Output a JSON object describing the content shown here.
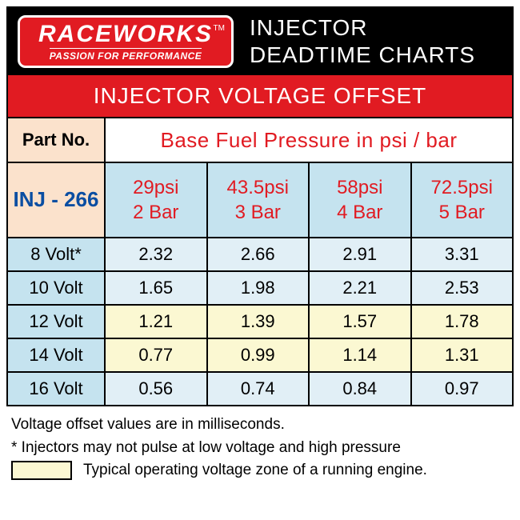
{
  "header": {
    "logo_main": "RACEWORKS",
    "logo_tm": "TM",
    "logo_tagline": "PASSION FOR PERFORMANCE",
    "title_line1": "INJECTOR",
    "title_line2": "DEADTIME CHARTS"
  },
  "subheader": "INJECTOR VOLTAGE OFFSET",
  "table": {
    "part_no_label": "Part No.",
    "part_no_value": "INJ - 266",
    "base_pressure_label": "Base Fuel Pressure in psi / bar",
    "columns": [
      {
        "psi": "29psi",
        "bar": "2 Bar"
      },
      {
        "psi": "43.5psi",
        "bar": "3 Bar"
      },
      {
        "psi": "58psi",
        "bar": "4 Bar"
      },
      {
        "psi": "72.5psi",
        "bar": "5 Bar"
      }
    ],
    "rows": [
      {
        "volt": "8 Volt*",
        "vals": [
          "2.32",
          "2.66",
          "2.91",
          "3.31"
        ],
        "highlight": false
      },
      {
        "volt": "10 Volt",
        "vals": [
          "1.65",
          "1.98",
          "2.21",
          "2.53"
        ],
        "highlight": false
      },
      {
        "volt": "12 Volt",
        "vals": [
          "1.21",
          "1.39",
          "1.57",
          "1.78"
        ],
        "highlight": true
      },
      {
        "volt": "14 Volt",
        "vals": [
          "0.77",
          "0.99",
          "1.14",
          "1.31"
        ],
        "highlight": true
      },
      {
        "volt": "16 Volt",
        "vals": [
          "0.56",
          "0.74",
          "0.84",
          "0.97"
        ],
        "highlight": false
      }
    ]
  },
  "footer": {
    "note1": "Voltage offset values are in milliseconds.",
    "note2": "* Injectors may not pulse at low voltage and high pressure",
    "legend": "Typical operating voltage zone of a running engine."
  },
  "colors": {
    "brand_red": "#e11b22",
    "header_bg": "#000000",
    "peach": "#fbe2cc",
    "blue_header": "#c5e3ef",
    "blue_light": "#e1eff6",
    "yellow": "#fbf8d2",
    "accent_blue": "#0a4ea2"
  }
}
